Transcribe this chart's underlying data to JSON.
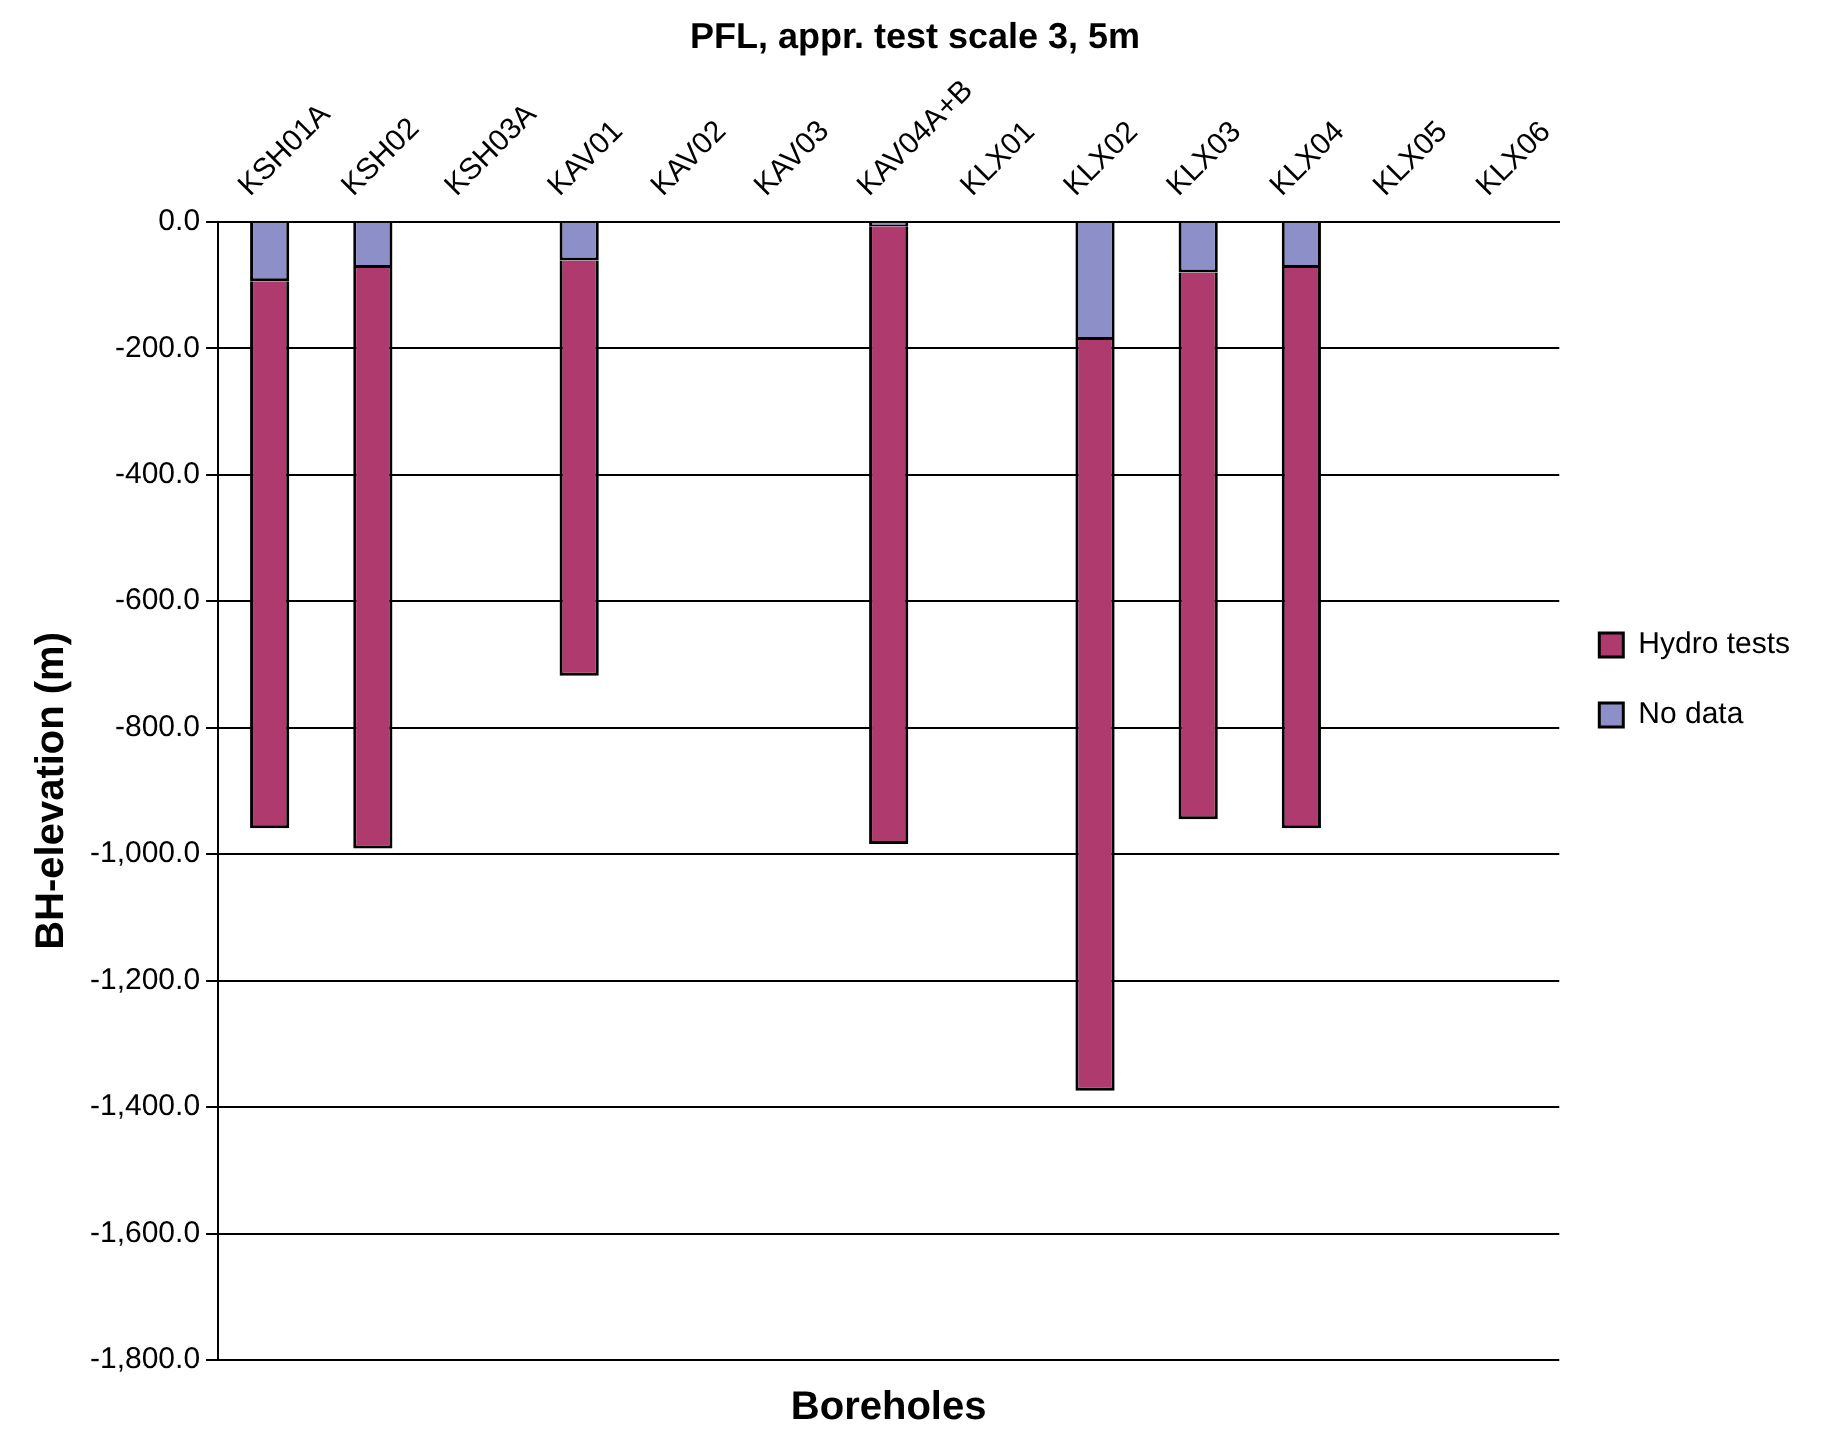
{
  "chart_data": {
    "type": "bar",
    "title": "PFL, appr. test scale 3, 5m",
    "xlabel": "Boreholes",
    "ylabel": "BH-elevation (m)",
    "categories": [
      "KSH01A",
      "KSH02",
      "KSH03A",
      "KAV01",
      "KAV02",
      "KAV03",
      "KAV04A+B",
      "KLX01",
      "KLX02",
      "KLX03",
      "KLX04",
      "KLX05",
      "KLX06"
    ],
    "stacked": true,
    "series": [
      {
        "name": "No data",
        "color": "#8c8fc8",
        "values": [
          -94,
          -73,
          null,
          -61,
          null,
          null,
          -7,
          null,
          -187,
          -80,
          -73,
          null,
          null
        ]
      },
      {
        "name": "Hydro tests",
        "color": "#ae3a6e",
        "values": [
          -865,
          -918,
          null,
          -657,
          null,
          null,
          -977,
          null,
          -1187,
          -865,
          -886,
          null,
          null
        ]
      }
    ],
    "ylim": [
      -1800,
      0
    ],
    "yticks": [
      {
        "value": 0,
        "label": "0.0"
      },
      {
        "value": -200,
        "label": "-200.0"
      },
      {
        "value": -400,
        "label": "-400.0"
      },
      {
        "value": -600,
        "label": "-600.0"
      },
      {
        "value": -800,
        "label": "-800.0"
      },
      {
        "value": -1000,
        "label": "-1,000.0"
      },
      {
        "value": -1200,
        "label": "-1,200.0"
      },
      {
        "value": -1400,
        "label": "-1,400.0"
      },
      {
        "value": -1600,
        "label": "-1,600.0"
      },
      {
        "value": -1800,
        "label": "-1,800.0"
      }
    ],
    "grid": "y",
    "legend": "right"
  }
}
